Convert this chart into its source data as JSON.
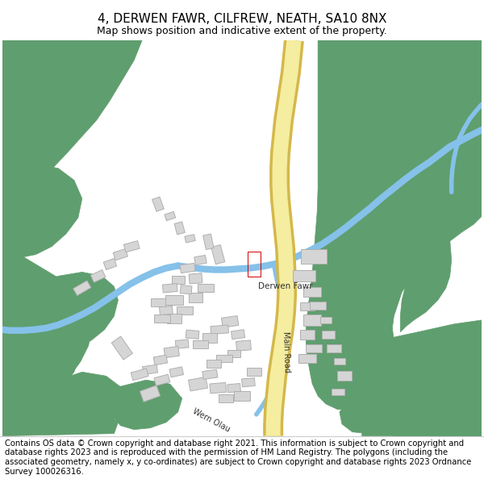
{
  "title": "4, DERWEN FAWR, CILFREW, NEATH, SA10 8NX",
  "subtitle": "Map shows position and indicative extent of the property.",
  "footer": "Contains OS data © Crown copyright and database right 2021. This information is subject to Crown copyright and database rights 2023 and is reproduced with the permission of HM Land Registry. The polygons (including the associated geometry, namely x, y co-ordinates) are subject to Crown copyright and database rights 2023 Ordnance Survey 100026316.",
  "bg_color": "#ffffff",
  "map_bg": "#ffffff",
  "green_color": "#5f9e6e",
  "road_fill": "#f5eda0",
  "road_outline": "#d4b84a",
  "river_blue": "#85c1e9",
  "building_gray": "#d5d5d5",
  "building_outline": "#b0b0b0",
  "highlight_red": "#cc0000",
  "text_color": "#333333",
  "title_fontsize": 11,
  "subtitle_fontsize": 9,
  "footer_fontsize": 7.2
}
